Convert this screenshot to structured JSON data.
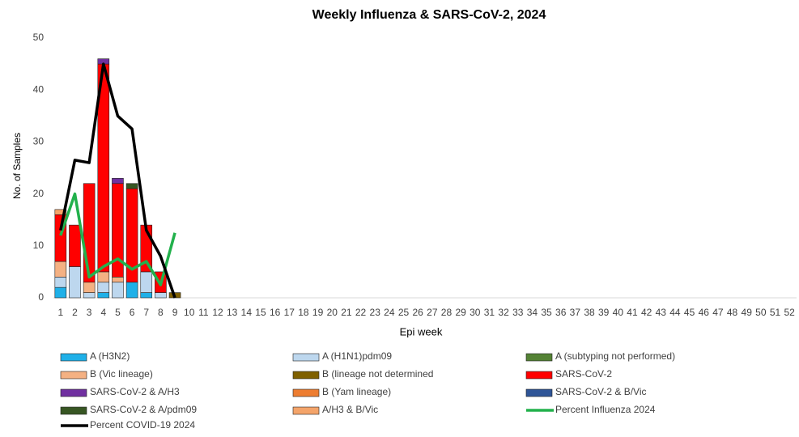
{
  "chart_data": {
    "type": "bar",
    "title": "Weekly Influenza & SARS-CoV-2, 2024",
    "ylabel": "No. of Samples",
    "xlabel": "Epi week",
    "categories": [
      "1",
      "2",
      "3",
      "4",
      "5",
      "6",
      "7",
      "8",
      "9",
      "10",
      "11",
      "12",
      "13",
      "14",
      "15",
      "16",
      "17",
      "18",
      "19",
      "20",
      "21",
      "22",
      "23",
      "24",
      "25",
      "26",
      "27",
      "28",
      "29",
      "30",
      "31",
      "32",
      "33",
      "34",
      "35",
      "36",
      "37",
      "38",
      "39",
      "40",
      "41",
      "42",
      "43",
      "44",
      "45",
      "46",
      "47",
      "48",
      "49",
      "50",
      "51",
      "52"
    ],
    "ylim": [
      0,
      50
    ],
    "yticks": [
      0,
      10,
      20,
      30,
      40,
      50
    ],
    "series": [
      {
        "name": "A (H3N2)",
        "type": "bar",
        "color": "#1fb0e8",
        "values": [
          2,
          0,
          0,
          1,
          0,
          3,
          1,
          0,
          0,
          null,
          null,
          null,
          null,
          null,
          null,
          null,
          null,
          null,
          null,
          null,
          null,
          null,
          null,
          null,
          null,
          null,
          null,
          null,
          null,
          null,
          null,
          null,
          null,
          null,
          null,
          null,
          null,
          null,
          null,
          null,
          null,
          null,
          null,
          null,
          null,
          null,
          null,
          null,
          null,
          null,
          null,
          null
        ]
      },
      {
        "name": "A (H1N1)pdm09",
        "type": "bar",
        "color": "#bdd7ee",
        "values": [
          2,
          6,
          1,
          2,
          3,
          0,
          4,
          1,
          0,
          null,
          null,
          null,
          null,
          null,
          null,
          null,
          null,
          null,
          null,
          null,
          null,
          null,
          null,
          null,
          null,
          null,
          null,
          null,
          null,
          null,
          null,
          null,
          null,
          null,
          null,
          null,
          null,
          null,
          null,
          null,
          null,
          null,
          null,
          null,
          null,
          null,
          null,
          null,
          null,
          null,
          null,
          null
        ]
      },
      {
        "name": "A (subtyping not performed)",
        "type": "bar",
        "color": "#548235",
        "values": [
          0,
          0,
          0,
          0,
          0,
          0,
          0,
          0,
          0,
          null,
          null,
          null,
          null,
          null,
          null,
          null,
          null,
          null,
          null,
          null,
          null,
          null,
          null,
          null,
          null,
          null,
          null,
          null,
          null,
          null,
          null,
          null,
          null,
          null,
          null,
          null,
          null,
          null,
          null,
          null,
          null,
          null,
          null,
          null,
          null,
          null,
          null,
          null,
          null,
          null,
          null,
          null
        ]
      },
      {
        "name": "B (Vic lineage)",
        "type": "bar",
        "color": "#f4b183",
        "values": [
          3,
          0,
          2,
          2,
          1,
          0,
          0,
          0,
          0,
          null,
          null,
          null,
          null,
          null,
          null,
          null,
          null,
          null,
          null,
          null,
          null,
          null,
          null,
          null,
          null,
          null,
          null,
          null,
          null,
          null,
          null,
          null,
          null,
          null,
          null,
          null,
          null,
          null,
          null,
          null,
          null,
          null,
          null,
          null,
          null,
          null,
          null,
          null,
          null,
          null,
          null,
          null
        ]
      },
      {
        "name": "B (lineage not determined",
        "type": "bar",
        "color": "#7f6000",
        "values": [
          0,
          0,
          0,
          0,
          0,
          0,
          0,
          0,
          1,
          null,
          null,
          null,
          null,
          null,
          null,
          null,
          null,
          null,
          null,
          null,
          null,
          null,
          null,
          null,
          null,
          null,
          null,
          null,
          null,
          null,
          null,
          null,
          null,
          null,
          null,
          null,
          null,
          null,
          null,
          null,
          null,
          null,
          null,
          null,
          null,
          null,
          null,
          null,
          null,
          null,
          null,
          null
        ]
      },
      {
        "name": "SARS-CoV-2",
        "type": "bar",
        "color": "#ff0000",
        "values": [
          9,
          8,
          19,
          40,
          18,
          18,
          9,
          4,
          0,
          null,
          null,
          null,
          null,
          null,
          null,
          null,
          null,
          null,
          null,
          null,
          null,
          null,
          null,
          null,
          null,
          null,
          null,
          null,
          null,
          null,
          null,
          null,
          null,
          null,
          null,
          null,
          null,
          null,
          null,
          null,
          null,
          null,
          null,
          null,
          null,
          null,
          null,
          null,
          null,
          null,
          null,
          null
        ]
      },
      {
        "name": "SARS-CoV-2 & A/H3",
        "type": "bar",
        "color": "#7030a0",
        "values": [
          0,
          0,
          0,
          1,
          1,
          0,
          0,
          0,
          0,
          null,
          null,
          null,
          null,
          null,
          null,
          null,
          null,
          null,
          null,
          null,
          null,
          null,
          null,
          null,
          null,
          null,
          null,
          null,
          null,
          null,
          null,
          null,
          null,
          null,
          null,
          null,
          null,
          null,
          null,
          null,
          null,
          null,
          null,
          null,
          null,
          null,
          null,
          null,
          null,
          null,
          null,
          null
        ]
      },
      {
        "name": "B (Yam lineage)",
        "type": "bar",
        "color": "#ed7d31",
        "values": [
          0,
          0,
          0,
          0,
          0,
          0,
          0,
          0,
          0,
          null,
          null,
          null,
          null,
          null,
          null,
          null,
          null,
          null,
          null,
          null,
          null,
          null,
          null,
          null,
          null,
          null,
          null,
          null,
          null,
          null,
          null,
          null,
          null,
          null,
          null,
          null,
          null,
          null,
          null,
          null,
          null,
          null,
          null,
          null,
          null,
          null,
          null,
          null,
          null,
          null,
          null,
          null
        ]
      },
      {
        "name": "SARS-CoV-2 & B/Vic",
        "type": "bar",
        "color": "#2f5597",
        "values": [
          0,
          0,
          0,
          0,
          0,
          0,
          0,
          0,
          0,
          null,
          null,
          null,
          null,
          null,
          null,
          null,
          null,
          null,
          null,
          null,
          null,
          null,
          null,
          null,
          null,
          null,
          null,
          null,
          null,
          null,
          null,
          null,
          null,
          null,
          null,
          null,
          null,
          null,
          null,
          null,
          null,
          null,
          null,
          null,
          null,
          null,
          null,
          null,
          null,
          null,
          null,
          null
        ]
      },
      {
        "name": "SARS-CoV-2 & A/pdm09",
        "type": "bar",
        "color": "#375623",
        "values": [
          0,
          0,
          0,
          0,
          0,
          1,
          0,
          0,
          0,
          null,
          null,
          null,
          null,
          null,
          null,
          null,
          null,
          null,
          null,
          null,
          null,
          null,
          null,
          null,
          null,
          null,
          null,
          null,
          null,
          null,
          null,
          null,
          null,
          null,
          null,
          null,
          null,
          null,
          null,
          null,
          null,
          null,
          null,
          null,
          null,
          null,
          null,
          null,
          null,
          null,
          null,
          null
        ]
      },
      {
        "name": "A/H3 & B/Vic",
        "type": "bar",
        "color": "#f4a46a",
        "values": [
          1,
          0,
          0,
          0,
          0,
          0,
          0,
          0,
          0,
          null,
          null,
          null,
          null,
          null,
          null,
          null,
          null,
          null,
          null,
          null,
          null,
          null,
          null,
          null,
          null,
          null,
          null,
          null,
          null,
          null,
          null,
          null,
          null,
          null,
          null,
          null,
          null,
          null,
          null,
          null,
          null,
          null,
          null,
          null,
          null,
          null,
          null,
          null,
          null,
          null,
          null,
          null
        ]
      },
      {
        "name": "Percent Influenza 2024",
        "type": "line",
        "color": "#22b14c",
        "values": [
          12,
          20,
          4,
          6,
          7.5,
          5.5,
          7,
          2.5,
          12.5,
          null,
          null,
          null,
          null,
          null,
          null,
          null,
          null,
          null,
          null,
          null,
          null,
          null,
          null,
          null,
          null,
          null,
          null,
          null,
          null,
          null,
          null,
          null,
          null,
          null,
          null,
          null,
          null,
          null,
          null,
          null,
          null,
          null,
          null,
          null,
          null,
          null,
          null,
          null,
          null,
          null,
          null,
          null
        ]
      },
      {
        "name": "Percent COVID-19 2024",
        "type": "line",
        "color": "#000000",
        "values": [
          13,
          26.5,
          26,
          45,
          35,
          32.5,
          13,
          8,
          0,
          null,
          null,
          null,
          null,
          null,
          null,
          null,
          null,
          null,
          null,
          null,
          null,
          null,
          null,
          null,
          null,
          null,
          null,
          null,
          null,
          null,
          null,
          null,
          null,
          null,
          null,
          null,
          null,
          null,
          null,
          null,
          null,
          null,
          null,
          null,
          null,
          null,
          null,
          null,
          null,
          null,
          null,
          null
        ]
      }
    ]
  }
}
